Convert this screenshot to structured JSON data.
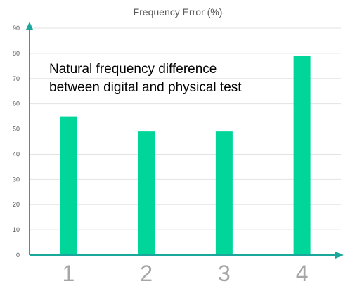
{
  "chart_data": {
    "type": "bar",
    "title": "Frequency Error (%)",
    "categories": [
      "1",
      "2",
      "3",
      "4"
    ],
    "values": [
      55,
      49,
      49,
      79
    ],
    "ylim": [
      0,
      90
    ],
    "yticks": [
      "0",
      "10",
      "20",
      "30",
      "40",
      "50",
      "60",
      "70",
      "80",
      "90"
    ],
    "xlabel": "",
    "ylabel": "",
    "grid": true,
    "bar_color": "#00d59a",
    "axis_color": "#1aa79c",
    "annotation": {
      "line1": "Natural frequency difference",
      "line2": "between digital and physical test"
    }
  }
}
